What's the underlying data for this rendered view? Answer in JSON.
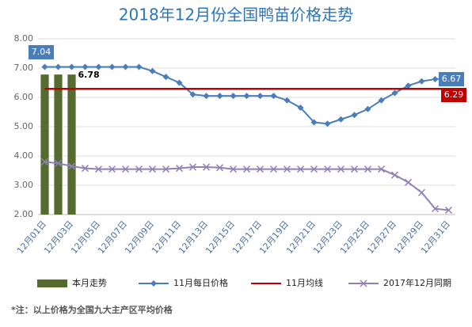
{
  "chart_data": {
    "type": "bar",
    "title": "2018年12月份全国鸭苗价格走势",
    "note": "*注：以上价格为全国九大主产区平均价格",
    "categories": [
      "12月01日",
      null,
      "12月03日",
      null,
      "12月05日",
      null,
      "12月07日",
      null,
      "12月09日",
      null,
      "12月11日",
      null,
      "12月13日",
      null,
      "12月15日",
      null,
      "12月17日",
      null,
      "12月19日",
      null,
      "12月21日",
      null,
      "12月23日",
      null,
      "12月25日",
      null,
      "12月27日",
      null,
      "12月29日",
      null,
      "12月31日"
    ],
    "ylim": [
      2,
      8
    ],
    "yticks": [
      {
        "value": 2,
        "label": "2.00"
      },
      {
        "value": 3,
        "label": "3.00"
      },
      {
        "value": 4,
        "label": "4.00"
      },
      {
        "value": 5,
        "label": "5.00"
      },
      {
        "value": 6,
        "label": "6.00"
      },
      {
        "value": 7,
        "label": "7.00"
      },
      {
        "value": 8,
        "label": "8.00"
      }
    ],
    "grid": true,
    "legend": "bottom",
    "series": [
      {
        "name": "本月走势",
        "type": "bar",
        "color": "#556b2f",
        "values": [
          6.78,
          6.78,
          6.78,
          null,
          null,
          null,
          null,
          null,
          null,
          null,
          null,
          null,
          null,
          null,
          null,
          null,
          null,
          null,
          null,
          null,
          null,
          null,
          null,
          null,
          null,
          null,
          null,
          null,
          null,
          null,
          null
        ]
      },
      {
        "name": "11月每日价格",
        "type": "line",
        "marker": "diamond",
        "color": "#4a7ebb",
        "values": [
          7.04,
          7.04,
          7.04,
          7.04,
          7.04,
          7.04,
          7.04,
          7.04,
          6.9,
          6.7,
          6.5,
          6.1,
          6.05,
          6.05,
          6.05,
          6.05,
          6.05,
          6.05,
          5.9,
          5.65,
          5.15,
          5.1,
          5.25,
          5.4,
          5.6,
          5.9,
          6.15,
          6.4,
          6.55,
          6.62,
          6.67
        ]
      },
      {
        "name": "11月均线",
        "type": "line",
        "marker": "none",
        "color": "#c00000",
        "values": [
          6.29,
          6.29,
          6.29,
          6.29,
          6.29,
          6.29,
          6.29,
          6.29,
          6.29,
          6.29,
          6.29,
          6.29,
          6.29,
          6.29,
          6.29,
          6.29,
          6.29,
          6.29,
          6.29,
          6.29,
          6.29,
          6.29,
          6.29,
          6.29,
          6.29,
          6.29,
          6.29,
          6.29,
          6.29,
          6.29,
          6.29
        ]
      },
      {
        "name": "2017年12月同期",
        "type": "line",
        "marker": "x",
        "color": "#9080b8",
        "values": [
          3.8,
          3.75,
          3.65,
          3.58,
          3.55,
          3.55,
          3.55,
          3.55,
          3.55,
          3.55,
          3.58,
          3.62,
          3.62,
          3.6,
          3.55,
          3.55,
          3.55,
          3.55,
          3.55,
          3.55,
          3.55,
          3.55,
          3.55,
          3.55,
          3.55,
          3.55,
          3.35,
          3.1,
          2.75,
          2.2,
          2.15
        ]
      }
    ]
  }
}
